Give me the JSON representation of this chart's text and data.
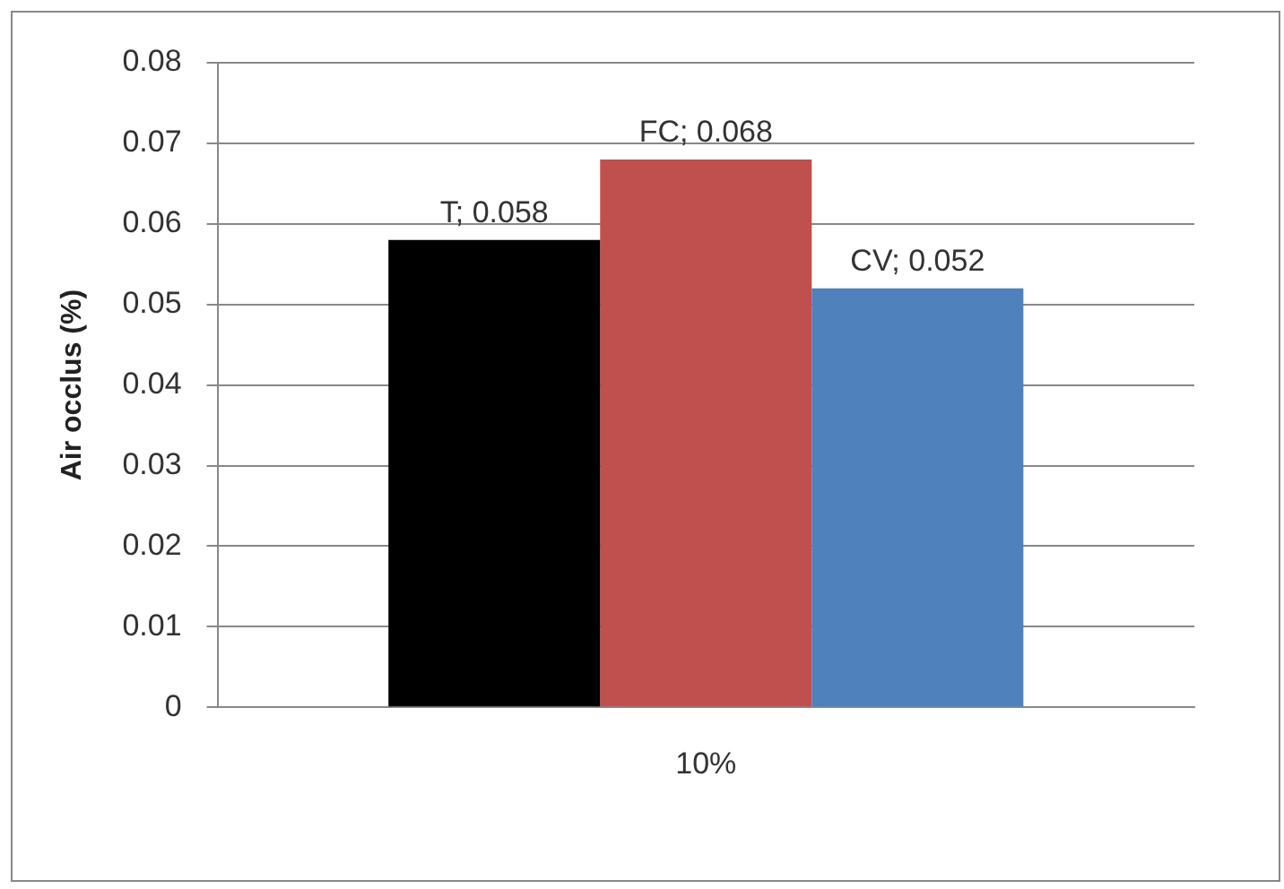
{
  "chart_data": {
    "type": "bar",
    "ylabel": "Air occlus (%)",
    "categories": [
      "10%"
    ],
    "series": [
      {
        "name": "T;",
        "color": "#000000",
        "values": [
          0.058
        ]
      },
      {
        "name": "FC;",
        "color": "#c0504d",
        "values": [
          0.068
        ]
      },
      {
        "name": "CV;",
        "color": "#4f81bd",
        "values": [
          0.052
        ]
      }
    ],
    "data_labels": true,
    "ylim": [
      0,
      0.08
    ],
    "yticks": [
      0,
      0.01,
      0.02,
      0.03,
      0.04,
      0.05,
      0.06,
      0.07,
      0.08
    ],
    "grid": "y",
    "legend": false
  }
}
